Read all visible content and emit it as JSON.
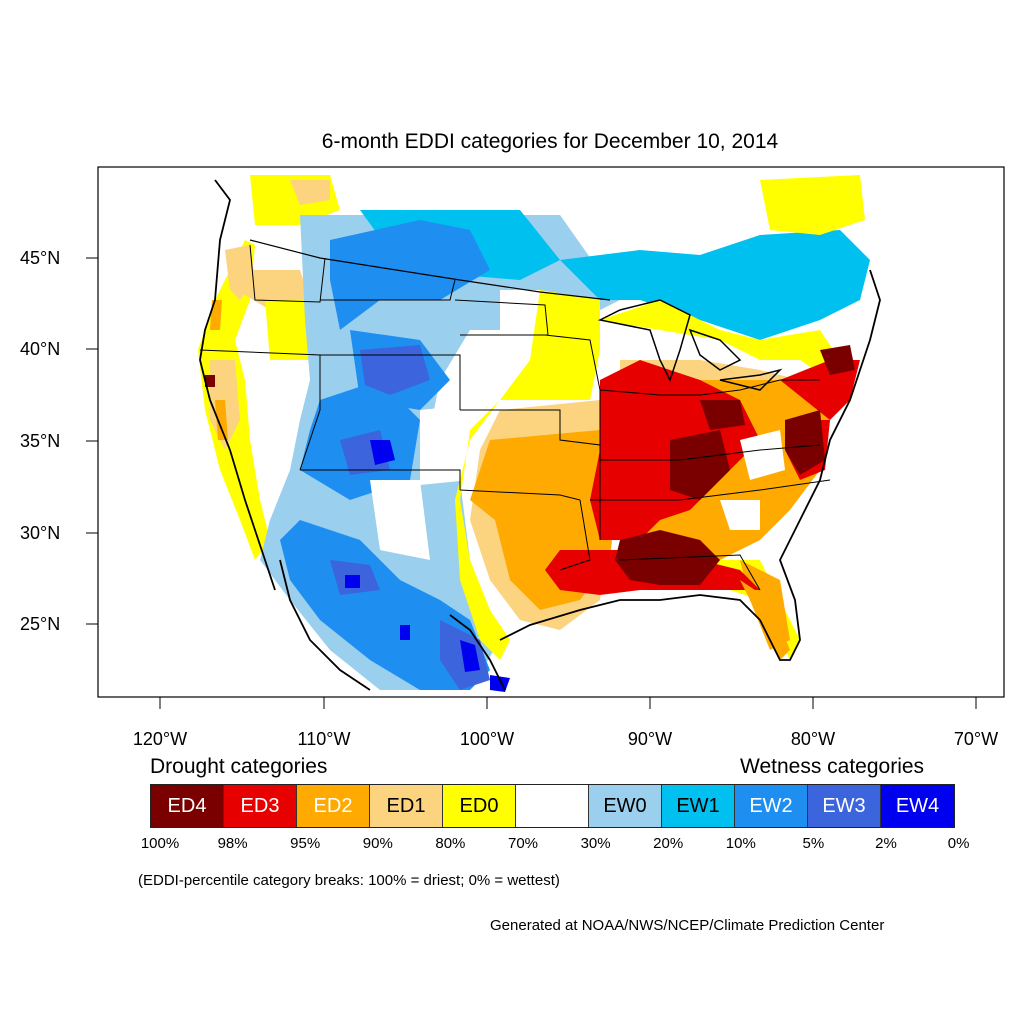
{
  "title": "6-month EDDI categories for December 10, 2014",
  "axes": {
    "lat_labels": [
      "45°N",
      "40°N",
      "35°N",
      "30°N",
      "25°N"
    ],
    "lon_labels": [
      "120°W",
      "110°W",
      "100°W",
      "90°W",
      "80°W",
      "70°W"
    ]
  },
  "legend": {
    "drought_heading": "Drought categories",
    "wetness_heading": "Wetness categories",
    "categories": [
      {
        "label": "ED4",
        "color": "#7a0000"
      },
      {
        "label": "ED3",
        "color": "#e60000"
      },
      {
        "label": "ED2",
        "color": "#ffaa00"
      },
      {
        "label": "ED1",
        "color": "#fcd37f"
      },
      {
        "label": "ED0",
        "color": "#ffff00"
      },
      {
        "label": "",
        "color": "#ffffff"
      },
      {
        "label": "EW0",
        "color": "#9bcfee"
      },
      {
        "label": "EW1",
        "color": "#00c0f0"
      },
      {
        "label": "EW2",
        "color": "#1e8ff0"
      },
      {
        "label": "EW3",
        "color": "#3c64dc"
      },
      {
        "label": "EW4",
        "color": "#0000f0"
      }
    ],
    "percentiles": [
      "100%",
      "98%",
      "95%",
      "90%",
      "80%",
      "70%",
      "30%",
      "20%",
      "10%",
      "5%",
      "2%",
      "0%"
    ],
    "note": "(EDDI-percentile category breaks: 100% = driest; 0% = wettest)"
  },
  "credit": "Generated at NOAA/NWS/NCEP/Climate Prediction Center"
}
